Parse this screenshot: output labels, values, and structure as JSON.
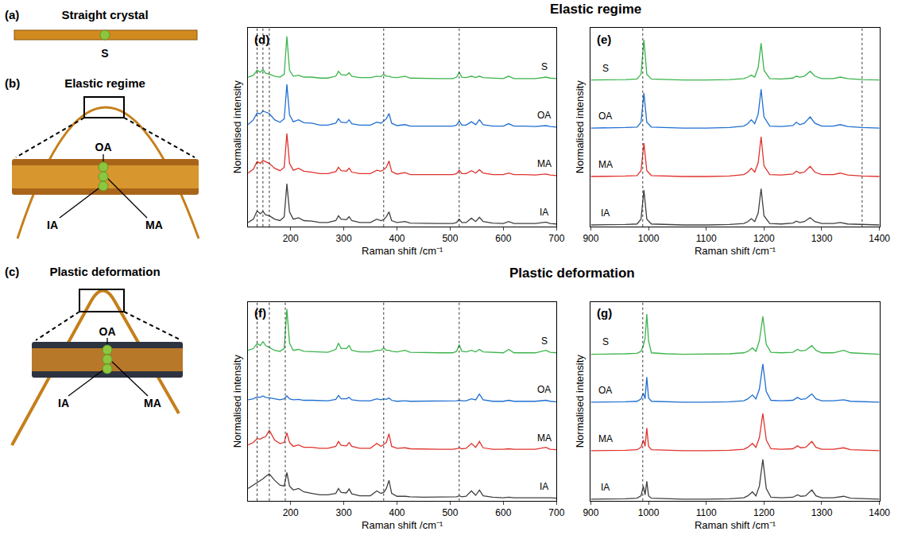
{
  "section_titles": [
    "Elastic regime",
    "Plastic deformation"
  ],
  "photo_panels": [
    {
      "letter": "(a)",
      "title": "Straight crystal",
      "points": [
        "S"
      ]
    },
    {
      "letter": "(b)",
      "title": "Elastic regime",
      "points": [
        "OA",
        "IA",
        "MA"
      ]
    },
    {
      "letter": "(c)",
      "title": "Plastic deformation",
      "points": [
        "OA",
        "IA",
        "MA"
      ]
    }
  ],
  "chart_data": [
    {
      "type": "line",
      "letter": "(d)",
      "x_label": "Raman shift /cm⁻¹",
      "y_label": "Normalised intensity",
      "xlim": [
        120,
        700
      ],
      "xticks": [
        200,
        300,
        400,
        500,
        600,
        700
      ],
      "ylim": [
        0,
        4.1
      ],
      "tick_labels": "x",
      "reference_lines": [
        137,
        148,
        160,
        375,
        517
      ],
      "x": [
        120,
        130,
        137,
        143,
        148,
        153,
        160,
        170,
        180,
        188,
        193,
        198,
        205,
        215,
        225,
        240,
        255,
        270,
        285,
        290,
        295,
        305,
        310,
        315,
        330,
        350,
        362,
        370,
        375,
        380,
        385,
        390,
        400,
        415,
        425,
        450,
        480,
        505,
        512,
        517,
        522,
        530,
        540,
        548,
        555,
        562,
        580,
        600,
        610,
        620,
        640,
        660,
        680,
        688,
        700
      ],
      "series": [
        {
          "name": "S",
          "color": "#3cb44b",
          "values": [
            3.08,
            3.12,
            3.22,
            3.18,
            3.24,
            3.16,
            3.14,
            3.1,
            3.08,
            3.14,
            3.92,
            3.22,
            3.1,
            3.12,
            3.08,
            3.08,
            3.06,
            3.06,
            3.1,
            3.2,
            3.13,
            3.12,
            3.17,
            3.1,
            3.07,
            3.07,
            3.1,
            3.09,
            3.14,
            3.1,
            3.1,
            3.08,
            3.07,
            3.1,
            3.06,
            3.05,
            3.05,
            3.05,
            3.08,
            3.18,
            3.08,
            3.07,
            3.1,
            3.07,
            3.1,
            3.07,
            3.06,
            3.05,
            3.1,
            3.05,
            3.05,
            3.05,
            3.08,
            3.06,
            3.05
          ]
        },
        {
          "name": "OA",
          "color": "#1f6fd1",
          "values": [
            2.1,
            2.2,
            2.34,
            2.32,
            2.38,
            2.36,
            2.33,
            2.2,
            2.15,
            2.22,
            2.93,
            2.3,
            2.16,
            2.2,
            2.14,
            2.13,
            2.09,
            2.09,
            2.13,
            2.22,
            2.15,
            2.14,
            2.2,
            2.12,
            2.09,
            2.09,
            2.15,
            2.13,
            2.18,
            2.22,
            2.33,
            2.13,
            2.08,
            2.1,
            2.07,
            2.07,
            2.06,
            2.07,
            2.09,
            2.17,
            2.09,
            2.09,
            2.16,
            2.1,
            2.2,
            2.1,
            2.07,
            2.07,
            2.12,
            2.07,
            2.07,
            2.06,
            2.08,
            2.06,
            2.05
          ]
        },
        {
          "name": "MA",
          "color": "#e0332c",
          "values": [
            1.1,
            1.18,
            1.34,
            1.3,
            1.36,
            1.33,
            1.3,
            1.2,
            1.15,
            1.22,
            1.92,
            1.3,
            1.16,
            1.2,
            1.14,
            1.12,
            1.09,
            1.09,
            1.13,
            1.22,
            1.15,
            1.14,
            1.2,
            1.12,
            1.09,
            1.09,
            1.16,
            1.14,
            1.17,
            1.22,
            1.35,
            1.13,
            1.08,
            1.11,
            1.07,
            1.07,
            1.07,
            1.07,
            1.09,
            1.16,
            1.09,
            1.09,
            1.15,
            1.1,
            1.17,
            1.1,
            1.07,
            1.07,
            1.1,
            1.07,
            1.07,
            1.06,
            1.08,
            1.06,
            1.05
          ]
        },
        {
          "name": "IA",
          "color": "#404040",
          "values": [
            0.08,
            0.15,
            0.32,
            0.26,
            0.31,
            0.24,
            0.22,
            0.15,
            0.12,
            0.2,
            0.88,
            0.3,
            0.15,
            0.18,
            0.12,
            0.11,
            0.08,
            0.08,
            0.12,
            0.22,
            0.15,
            0.14,
            0.2,
            0.12,
            0.08,
            0.08,
            0.15,
            0.12,
            0.14,
            0.2,
            0.3,
            0.12,
            0.08,
            0.1,
            0.07,
            0.06,
            0.06,
            0.06,
            0.08,
            0.15,
            0.08,
            0.08,
            0.17,
            0.1,
            0.19,
            0.1,
            0.07,
            0.06,
            0.1,
            0.06,
            0.06,
            0.06,
            0.09,
            0.06,
            0.05
          ]
        }
      ]
    },
    {
      "type": "line",
      "letter": "(e)",
      "x_label": "Raman shift /cm⁻¹",
      "y_label": "Normalised intensity",
      "xlim": [
        900,
        1400
      ],
      "xticks": [
        900,
        1000,
        1100,
        1200,
        1300,
        1400
      ],
      "ylim": [
        0,
        4.1
      ],
      "tick_labels": "x",
      "reference_lines": [
        990,
        1370
      ],
      "x": [
        900,
        930,
        960,
        980,
        987,
        992,
        997,
        1005,
        1030,
        1060,
        1100,
        1140,
        1165,
        1172,
        1178,
        1184,
        1190,
        1195,
        1200,
        1210,
        1230,
        1250,
        1256,
        1262,
        1270,
        1280,
        1288,
        1300,
        1320,
        1332,
        1345,
        1370,
        1400
      ],
      "series": [
        {
          "name": "S",
          "color": "#3cb44b",
          "values": [
            3.02,
            3.02,
            3.03,
            3.04,
            3.14,
            3.85,
            3.14,
            3.04,
            3.03,
            3.02,
            3.02,
            3.03,
            3.05,
            3.08,
            3.12,
            3.08,
            3.28,
            3.78,
            3.22,
            3.05,
            3.04,
            3.06,
            3.1,
            3.08,
            3.1,
            3.2,
            3.1,
            3.05,
            3.05,
            3.08,
            3.05,
            3.03,
            3.02
          ]
        },
        {
          "name": "OA",
          "color": "#1f6fd1",
          "values": [
            2.03,
            2.03,
            2.04,
            2.05,
            2.15,
            2.75,
            2.15,
            2.05,
            2.04,
            2.03,
            2.03,
            2.04,
            2.07,
            2.12,
            2.2,
            2.12,
            2.32,
            2.83,
            2.26,
            2.07,
            2.06,
            2.08,
            2.15,
            2.1,
            2.13,
            2.26,
            2.13,
            2.07,
            2.07,
            2.1,
            2.06,
            2.04,
            2.03
          ]
        },
        {
          "name": "MA",
          "color": "#e0332c",
          "values": [
            1.03,
            1.03,
            1.04,
            1.05,
            1.15,
            1.72,
            1.15,
            1.05,
            1.04,
            1.03,
            1.03,
            1.04,
            1.07,
            1.12,
            1.2,
            1.12,
            1.32,
            1.85,
            1.25,
            1.07,
            1.06,
            1.08,
            1.14,
            1.1,
            1.12,
            1.24,
            1.12,
            1.07,
            1.07,
            1.1,
            1.06,
            1.04,
            1.03
          ]
        },
        {
          "name": "IA",
          "color": "#404040",
          "values": [
            0.03,
            0.03,
            0.04,
            0.05,
            0.15,
            0.75,
            0.15,
            0.05,
            0.04,
            0.03,
            0.03,
            0.04,
            0.06,
            0.1,
            0.16,
            0.1,
            0.28,
            0.78,
            0.22,
            0.06,
            0.05,
            0.07,
            0.11,
            0.08,
            0.1,
            0.18,
            0.1,
            0.06,
            0.06,
            0.08,
            0.05,
            0.04,
            0.03
          ]
        }
      ]
    },
    {
      "type": "line",
      "letter": "(f)",
      "x_label": "Raman shift /cm⁻¹",
      "y_label": "Normalised intensity",
      "xlim": [
        120,
        700
      ],
      "xticks": [
        200,
        300,
        400,
        500,
        600,
        700
      ],
      "ylim": [
        0,
        4.1
      ],
      "tick_labels": "x",
      "reference_lines": [
        137,
        160,
        190,
        375,
        517
      ],
      "x": [
        120,
        130,
        137,
        143,
        148,
        153,
        160,
        170,
        180,
        188,
        193,
        198,
        205,
        215,
        225,
        240,
        255,
        270,
        285,
        290,
        295,
        305,
        310,
        315,
        330,
        350,
        362,
        370,
        375,
        380,
        385,
        390,
        400,
        415,
        425,
        450,
        480,
        505,
        512,
        517,
        522,
        530,
        540,
        548,
        555,
        562,
        580,
        600,
        610,
        620,
        640,
        660,
        680,
        688,
        700
      ],
      "series": [
        {
          "name": "S",
          "color": "#3cb44b",
          "values": [
            3.1,
            3.14,
            3.24,
            3.2,
            3.28,
            3.2,
            3.16,
            3.1,
            3.08,
            3.14,
            3.95,
            3.25,
            3.1,
            3.12,
            3.08,
            3.07,
            3.06,
            3.06,
            3.12,
            3.25,
            3.14,
            3.14,
            3.2,
            3.1,
            3.07,
            3.07,
            3.1,
            3.1,
            3.15,
            3.1,
            3.1,
            3.08,
            3.07,
            3.1,
            3.06,
            3.05,
            3.05,
            3.05,
            3.08,
            3.22,
            3.08,
            3.07,
            3.1,
            3.07,
            3.12,
            3.07,
            3.06,
            3.05,
            3.12,
            3.05,
            3.05,
            3.05,
            3.1,
            3.06,
            3.05
          ]
        },
        {
          "name": "OA",
          "color": "#1f6fd1",
          "values": [
            2.08,
            2.1,
            2.14,
            2.13,
            2.16,
            2.13,
            2.12,
            2.1,
            2.08,
            2.1,
            2.16,
            2.1,
            2.08,
            2.09,
            2.07,
            2.07,
            2.06,
            2.06,
            2.09,
            2.17,
            2.1,
            2.1,
            2.13,
            2.08,
            2.06,
            2.06,
            2.1,
            2.08,
            2.1,
            2.09,
            2.12,
            2.07,
            2.05,
            2.06,
            2.05,
            2.05,
            2.05,
            2.05,
            2.06,
            2.07,
            2.06,
            2.06,
            2.1,
            2.08,
            2.2,
            2.08,
            2.05,
            2.05,
            2.07,
            2.05,
            2.05,
            2.05,
            2.07,
            2.05,
            2.04
          ]
        },
        {
          "name": "MA",
          "color": "#e0332c",
          "values": [
            1.15,
            1.2,
            1.28,
            1.27,
            1.3,
            1.32,
            1.45,
            1.25,
            1.18,
            1.2,
            1.4,
            1.2,
            1.12,
            1.15,
            1.1,
            1.1,
            1.08,
            1.08,
            1.12,
            1.22,
            1.14,
            1.13,
            1.2,
            1.12,
            1.08,
            1.08,
            1.18,
            1.12,
            1.16,
            1.2,
            1.38,
            1.12,
            1.08,
            1.09,
            1.07,
            1.06,
            1.06,
            1.06,
            1.07,
            1.09,
            1.07,
            1.08,
            1.18,
            1.1,
            1.22,
            1.09,
            1.06,
            1.06,
            1.07,
            1.06,
            1.06,
            1.06,
            1.1,
            1.06,
            1.05
          ]
        },
        {
          "name": "IA",
          "color": "#404040",
          "values": [
            0.25,
            0.32,
            0.38,
            0.42,
            0.45,
            0.5,
            0.55,
            0.42,
            0.32,
            0.3,
            0.58,
            0.3,
            0.22,
            0.25,
            0.18,
            0.15,
            0.12,
            0.12,
            0.15,
            0.25,
            0.17,
            0.16,
            0.24,
            0.14,
            0.1,
            0.1,
            0.2,
            0.15,
            0.17,
            0.25,
            0.42,
            0.15,
            0.09,
            0.09,
            0.08,
            0.07,
            0.07,
            0.07,
            0.08,
            0.1,
            0.08,
            0.09,
            0.2,
            0.11,
            0.22,
            0.1,
            0.07,
            0.06,
            0.07,
            0.06,
            0.06,
            0.06,
            0.07,
            0.06,
            0.05
          ]
        }
      ]
    },
    {
      "type": "line",
      "letter": "(g)",
      "x_label": "Raman shift /cm⁻¹",
      "y_label": "Normalised intensity",
      "xlim": [
        900,
        1400
      ],
      "xticks": [
        900,
        1000,
        1100,
        1200,
        1300,
        1400
      ],
      "ylim": [
        0,
        4.1
      ],
      "tick_labels": "x",
      "reference_lines": [
        990
      ],
      "x": [
        900,
        930,
        960,
        980,
        987,
        991,
        994,
        997,
        1000,
        1005,
        1030,
        1060,
        1100,
        1140,
        1165,
        1172,
        1180,
        1186,
        1192,
        1198,
        1204,
        1212,
        1230,
        1250,
        1258,
        1264,
        1272,
        1283,
        1290,
        1300,
        1320,
        1338,
        1350,
        1375,
        1400
      ],
      "series": [
        {
          "name": "S",
          "color": "#3cb44b",
          "values": [
            3.02,
            3.02,
            3.03,
            3.04,
            3.08,
            3.2,
            3.35,
            3.85,
            3.3,
            3.05,
            3.03,
            3.02,
            3.02,
            3.03,
            3.05,
            3.08,
            3.15,
            3.08,
            3.3,
            3.8,
            3.22,
            3.06,
            3.05,
            3.06,
            3.12,
            3.09,
            3.1,
            3.2,
            3.1,
            3.05,
            3.05,
            3.1,
            3.05,
            3.03,
            3.02
          ]
        },
        {
          "name": "OA",
          "color": "#1f6fd1",
          "values": [
            2.03,
            2.03,
            2.04,
            2.05,
            2.1,
            2.22,
            2.1,
            2.55,
            2.12,
            2.05,
            2.04,
            2.03,
            2.03,
            2.04,
            2.06,
            2.1,
            2.18,
            2.1,
            2.3,
            2.82,
            2.25,
            2.07,
            2.06,
            2.07,
            2.13,
            2.09,
            2.1,
            2.2,
            2.1,
            2.06,
            2.06,
            2.08,
            2.05,
            2.04,
            2.03
          ]
        },
        {
          "name": "MA",
          "color": "#e0332c",
          "values": [
            1.03,
            1.03,
            1.04,
            1.05,
            1.1,
            1.25,
            1.12,
            1.5,
            1.12,
            1.05,
            1.04,
            1.03,
            1.03,
            1.04,
            1.06,
            1.1,
            1.18,
            1.1,
            1.3,
            1.8,
            1.25,
            1.07,
            1.06,
            1.07,
            1.13,
            1.09,
            1.1,
            1.22,
            1.1,
            1.06,
            1.06,
            1.09,
            1.05,
            1.04,
            1.03
          ]
        },
        {
          "name": "IA",
          "color": "#404040",
          "values": [
            0.03,
            0.03,
            0.04,
            0.05,
            0.1,
            0.3,
            0.12,
            0.4,
            0.1,
            0.05,
            0.04,
            0.03,
            0.03,
            0.04,
            0.06,
            0.1,
            0.18,
            0.1,
            0.3,
            0.85,
            0.25,
            0.07,
            0.06,
            0.07,
            0.12,
            0.09,
            0.1,
            0.22,
            0.1,
            0.06,
            0.06,
            0.09,
            0.05,
            0.04,
            0.03
          ]
        }
      ]
    }
  ]
}
